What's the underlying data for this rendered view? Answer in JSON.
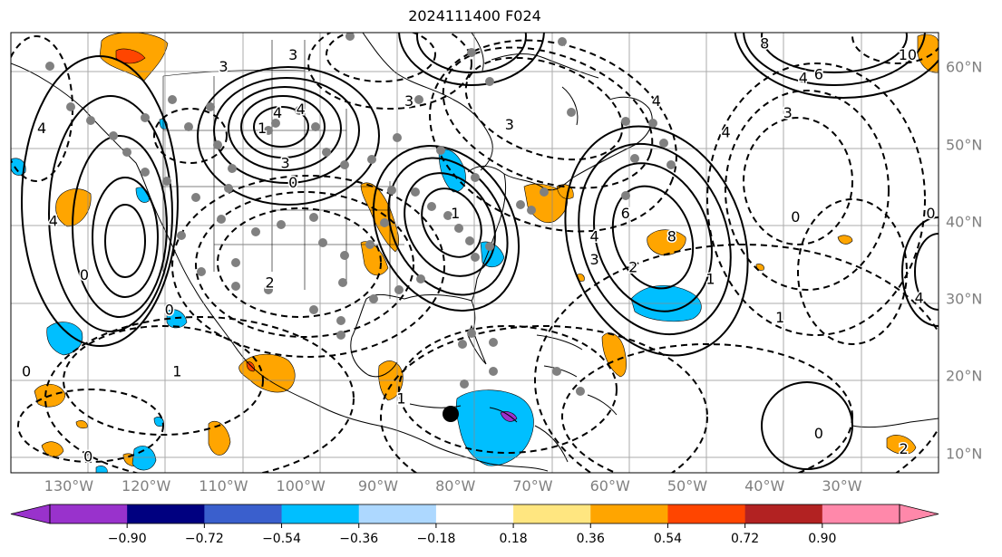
{
  "title": "2024111400 F024",
  "map": {
    "extent": {
      "lon": [
        -137.5,
        -17.5
      ],
      "lat": [
        7.5,
        64.5
      ]
    },
    "lon_labels": [
      {
        "lon": -130,
        "text": "130°W"
      },
      {
        "lon": -120,
        "text": "120°W"
      },
      {
        "lon": -110,
        "text": "110°W"
      },
      {
        "lon": -100,
        "text": "100°W"
      },
      {
        "lon": -90,
        "text": "90°W"
      },
      {
        "lon": -80,
        "text": "80°W"
      },
      {
        "lon": -70,
        "text": "70°W"
      },
      {
        "lon": -60,
        "text": "60°W"
      },
      {
        "lon": -50,
        "text": "50°W"
      },
      {
        "lon": -40,
        "text": "40°W"
      },
      {
        "lon": -30,
        "text": "30°W"
      }
    ],
    "lat_labels": [
      {
        "lat": 60,
        "text": "60°N"
      },
      {
        "lat": 50,
        "text": "50°N"
      },
      {
        "lat": 40,
        "text": "40°N"
      },
      {
        "lat": 30,
        "text": "30°N"
      },
      {
        "lat": 20,
        "text": "20°N"
      },
      {
        "lat": 10,
        "text": "10°N"
      }
    ],
    "contour_labels": [
      {
        "lon": -133.5,
        "lat": 52,
        "text": "4"
      },
      {
        "lon": -132,
        "lat": 40,
        "text": "4"
      },
      {
        "lon": -128,
        "lat": 33,
        "text": "0"
      },
      {
        "lon": -105,
        "lat": 52,
        "text": "1"
      },
      {
        "lon": -110,
        "lat": 60,
        "text": "3"
      },
      {
        "lon": -101,
        "lat": 61.5,
        "text": "3"
      },
      {
        "lon": -103,
        "lat": 54,
        "text": "4"
      },
      {
        "lon": -100,
        "lat": 54.5,
        "text": "4"
      },
      {
        "lon": -102,
        "lat": 47.5,
        "text": "3"
      },
      {
        "lon": -101,
        "lat": 45,
        "text": "0"
      },
      {
        "lon": -104,
        "lat": 32,
        "text": "2"
      },
      {
        "lon": -117,
        "lat": 28.5,
        "text": "0"
      },
      {
        "lon": -116,
        "lat": 20.5,
        "text": "1"
      },
      {
        "lon": -135.5,
        "lat": 20.5,
        "text": "0"
      },
      {
        "lon": -127.5,
        "lat": 9.5,
        "text": "0"
      },
      {
        "lon": -86,
        "lat": 55.5,
        "text": "3"
      },
      {
        "lon": -73,
        "lat": 52.5,
        "text": "3"
      },
      {
        "lon": -80,
        "lat": 41,
        "text": "1"
      },
      {
        "lon": -87,
        "lat": 17,
        "text": "1"
      },
      {
        "lon": -58,
        "lat": 41,
        "text": "6"
      },
      {
        "lon": -62,
        "lat": 38,
        "text": "4"
      },
      {
        "lon": -62,
        "lat": 35,
        "text": "3"
      },
      {
        "lon": -57,
        "lat": 34,
        "text": "2"
      },
      {
        "lon": -52,
        "lat": 38,
        "text": "8"
      },
      {
        "lon": -54,
        "lat": 55.5,
        "text": "4"
      },
      {
        "lon": -45,
        "lat": 51.5,
        "text": "4"
      },
      {
        "lon": -37,
        "lat": 54,
        "text": "3"
      },
      {
        "lon": -35,
        "lat": 58.5,
        "text": "4"
      },
      {
        "lon": -33,
        "lat": 59,
        "text": "6"
      },
      {
        "lon": -40,
        "lat": 63,
        "text": "8"
      },
      {
        "lon": -21.5,
        "lat": 61.5,
        "text": "10"
      },
      {
        "lon": -36,
        "lat": 40.5,
        "text": "0"
      },
      {
        "lon": -38,
        "lat": 27.5,
        "text": "1"
      },
      {
        "lon": -47,
        "lat": 32.5,
        "text": "1"
      },
      {
        "lon": -33,
        "lat": 12.5,
        "text": "0"
      },
      {
        "lon": -22,
        "lat": 10.5,
        "text": "2"
      },
      {
        "lon": -20,
        "lat": 30,
        "text": "4"
      },
      {
        "lon": -18.5,
        "lat": 41,
        "text": "0"
      }
    ]
  },
  "colorbar": {
    "colors": [
      "#9932cc",
      "#000080",
      "#3a5fcd",
      "#00bfff",
      "#add8ff",
      "#ffffff",
      "#ffe680",
      "#ffa500",
      "#ff4500",
      "#b22222",
      "#ff88aa"
    ],
    "under_color": "#9932cc",
    "over_color": "#ff88aa",
    "labels": [
      "−0.90",
      "−0.72",
      "−0.54",
      "−0.36",
      "−0.18",
      "0.18",
      "0.36",
      "0.54",
      "0.72",
      "0.90"
    ]
  }
}
